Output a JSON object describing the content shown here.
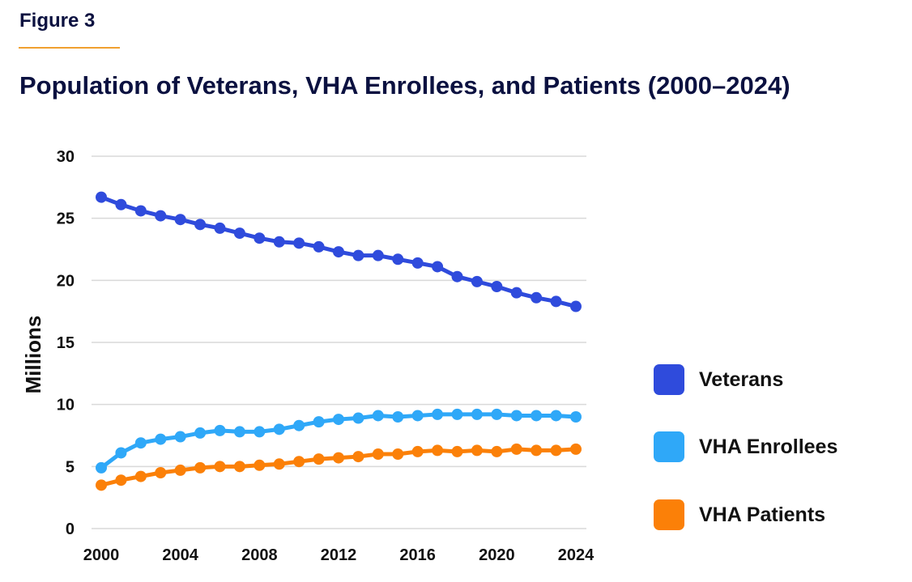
{
  "figure_label": "Figure 3",
  "chart_data": {
    "type": "line",
    "title": "Population of Veterans, VHA Enrollees, and Patients (2000–2024)",
    "xlabel": "",
    "ylabel": "Millions",
    "ylim": [
      0,
      30
    ],
    "yticks": [
      0,
      5,
      10,
      15,
      20,
      25,
      30
    ],
    "xlim": [
      2000,
      2024
    ],
    "xticks": [
      2000,
      2004,
      2008,
      2012,
      2016,
      2020,
      2024
    ],
    "grid": true,
    "legend_position": "right",
    "x": [
      2000,
      2001,
      2002,
      2003,
      2004,
      2005,
      2006,
      2007,
      2008,
      2009,
      2010,
      2011,
      2012,
      2013,
      2014,
      2015,
      2016,
      2017,
      2018,
      2019,
      2020,
      2021,
      2022,
      2023,
      2024
    ],
    "series": [
      {
        "name": "Veterans",
        "color": "#2f4bdc",
        "values": [
          26.7,
          26.1,
          25.6,
          25.2,
          24.9,
          24.5,
          24.2,
          23.8,
          23.4,
          23.1,
          23.0,
          22.7,
          22.3,
          22.0,
          22.0,
          21.7,
          21.4,
          21.1,
          20.3,
          19.9,
          19.5,
          19.0,
          18.6,
          18.3,
          17.9
        ]
      },
      {
        "name": "VHA Enrollees",
        "color": "#2fa8f8",
        "values": [
          4.9,
          6.1,
          6.9,
          7.2,
          7.4,
          7.7,
          7.9,
          7.8,
          7.8,
          8.0,
          8.3,
          8.6,
          8.8,
          8.9,
          9.1,
          9.0,
          9.1,
          9.2,
          9.2,
          9.2,
          9.2,
          9.1,
          9.1,
          9.1,
          9.0
        ]
      },
      {
        "name": "VHA Patients",
        "color": "#fb8008",
        "values": [
          3.5,
          3.9,
          4.2,
          4.5,
          4.7,
          4.9,
          5.0,
          5.0,
          5.1,
          5.2,
          5.4,
          5.6,
          5.7,
          5.8,
          6.0,
          6.0,
          6.2,
          6.3,
          6.2,
          6.3,
          6.2,
          6.4,
          6.3,
          6.3,
          6.4
        ]
      }
    ]
  }
}
